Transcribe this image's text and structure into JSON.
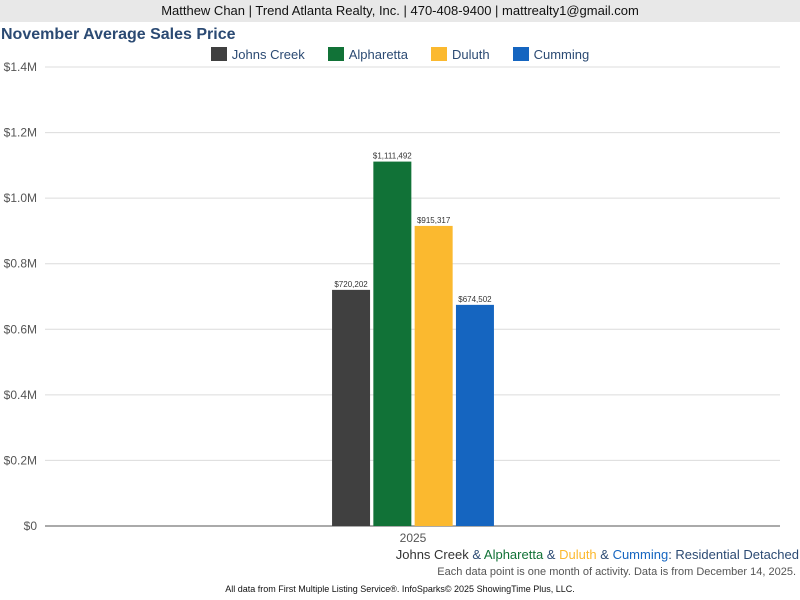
{
  "header": {
    "contact": "Matthew Chan | Trend Atlanta Realty, Inc. | 470-408-9400 | mattrealty1@gmail.com"
  },
  "chart_data": {
    "type": "bar",
    "title": "November Average Sales Price",
    "categories": [
      "2025"
    ],
    "series": [
      {
        "name": "Johns Creek",
        "color": "#404040",
        "values": [
          720202
        ],
        "label": "$720,202"
      },
      {
        "name": "Alpharetta",
        "color": "#117237",
        "values": [
          1111492
        ],
        "label": "$1,111,492"
      },
      {
        "name": "Duluth",
        "color": "#fbb92f",
        "values": [
          915317
        ],
        "label": "$915,317"
      },
      {
        "name": "Cumming",
        "color": "#1565c0",
        "values": [
          674502
        ],
        "label": "$674,502"
      }
    ],
    "ylim": [
      0,
      1400000
    ],
    "yticks": [
      {
        "value": 0,
        "label": "$0"
      },
      {
        "value": 200000,
        "label": "$0.2M"
      },
      {
        "value": 400000,
        "label": "$0.4M"
      },
      {
        "value": 600000,
        "label": "$0.6M"
      },
      {
        "value": 800000,
        "label": "$0.8M"
      },
      {
        "value": 1000000,
        "label": "$1.0M"
      },
      {
        "value": 1200000,
        "label": "$1.2M"
      },
      {
        "value": 1400000,
        "label": "$1.4M"
      }
    ],
    "grid": true,
    "legend_position": "top"
  },
  "subtitle": {
    "names": [
      "Johns Creek",
      "Alpharetta",
      "Duluth",
      "Cumming"
    ],
    "separator": " & ",
    "suffix": ": Residential Detached"
  },
  "note": "Each data point is one month of activity. Data is from December 14, 2025.",
  "footer": "All data from First Multiple Listing Service®. InfoSparks© 2025 ShowingTime Plus, LLC."
}
